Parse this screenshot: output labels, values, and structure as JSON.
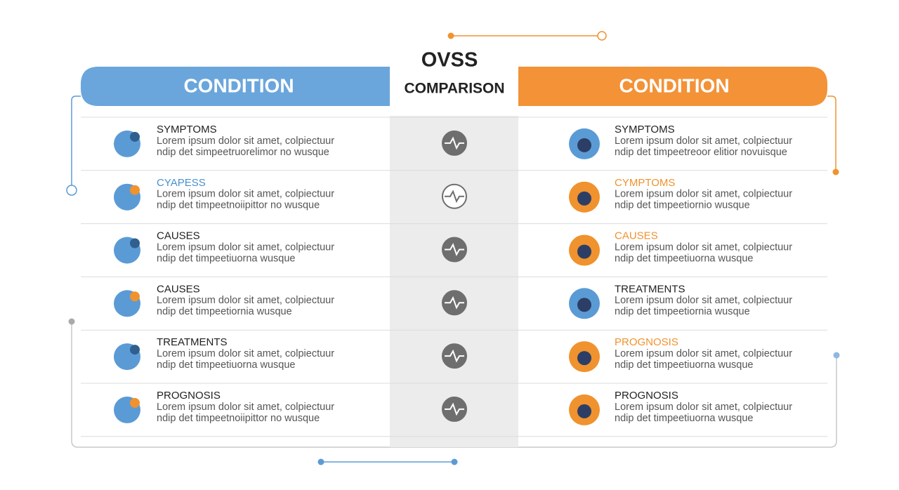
{
  "header": {
    "left": "CONDITION",
    "title": "OVSS",
    "subtitle": "COMPARISON",
    "right": "CONDITION"
  },
  "rows": [
    {
      "left": {
        "title": "SYMPTOMS",
        "title_color": "#1f1f1f",
        "line1": "Lorem ipsum dolor sit amet, colpiectuur",
        "line2": "ndip det simpeetruorelimor no wusque"
      },
      "right": {
        "title": "SYMPTOMS",
        "title_color": "#1f1f1f",
        "line1": "Lorem ipsum dolor sit amet, colpiectuur",
        "line2": "ndip det timpeetreoor elitior novuisque"
      }
    },
    {
      "left": {
        "title": "CYAPESS",
        "title_color": "#4a90d0",
        "line1": "Lorem ipsum dolor sit amet, colpiectuur",
        "line2": "ndip det timpeetnoiipittor no wusque"
      },
      "right": {
        "title": "CYMPTOMS",
        "title_color": "#f0922e",
        "line1": "Lorem ipsum dolor sit amet, colpiectuur",
        "line2": "ndip det timpeetiornio wusque"
      }
    },
    {
      "left": {
        "title": "CAUSES",
        "title_color": "#1f1f1f",
        "line1": "Lorem ipsum dolor sit amet, colpiectuur",
        "line2": "ndip det timpeetiuorna wusque"
      },
      "right": {
        "title": "CAUSES",
        "title_color": "#f0922e",
        "line1": "Lorem ipsum dolor sit amet, colpiectuur",
        "line2": "ndip det timpeetiuorna wusque"
      }
    },
    {
      "left": {
        "title": "CAUSES",
        "title_color": "#1f1f1f",
        "line1": "Lorem ipsum dolor sit amet, colpiectuur",
        "line2": "ndip det timpeetiornia wusque"
      },
      "right": {
        "title": "TREATMENTS",
        "title_color": "#1f1f1f",
        "line1": "Lorem ipsum dolor sit amet, colpiectuur",
        "line2": "ndip det timpeetiornia wusque"
      }
    },
    {
      "left": {
        "title": "TREATMENTS",
        "title_color": "#1f1f1f",
        "line1": "Lorem ipsum dolor sit amet, colpiectuur",
        "line2": "ndip det timpeetiuorna wusque"
      },
      "right": {
        "title": "PROGNOSIS",
        "title_color": "#f0922e",
        "line1": "Lorem ipsum dolor sit amet, colpiectuur",
        "line2": "ndip det timpeetiuorna wusque"
      }
    },
    {
      "left": {
        "title": "PROGNOSIS",
        "title_color": "#1f1f1f",
        "line1": "Lorem ipsum dolor sit amet, colpiectuur",
        "line2": "ndip det timpeetnoiipittor no wusque"
      },
      "right": {
        "title": "PROGNOSIS",
        "title_color": "#1f1f1f",
        "line1": "Lorem ipsum dolor sit amet, colpiectuur",
        "line2": "ndip det timpeetiuorna wusque"
      }
    }
  ]
}
